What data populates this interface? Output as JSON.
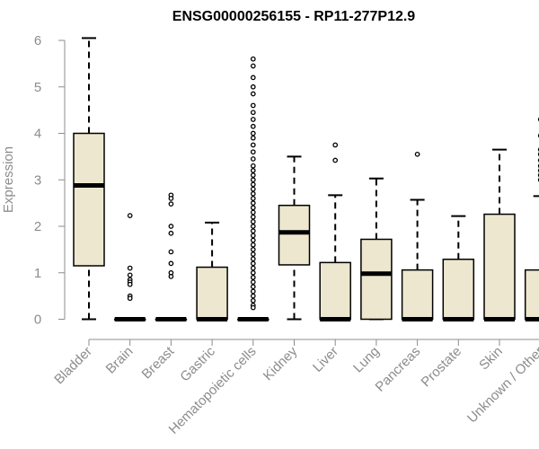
{
  "chart_data": {
    "type": "boxplot",
    "title": "ENSG00000256155 - RP11-277P12.9",
    "xlabel": "",
    "ylabel": "Expression",
    "ylim": [
      0,
      6.2
    ],
    "yticks": [
      0,
      1,
      2,
      3,
      4,
      5,
      6
    ],
    "grid": false,
    "colors": {
      "box_fill": "#ede7cf",
      "stroke": "#000000",
      "axis_text": "#8c8c8c"
    },
    "categories": [
      "Bladder",
      "Brain",
      "Breast",
      "Gastric",
      "Hematopoietic cells",
      "Kidney",
      "Liver",
      "Lung",
      "Pancreas",
      "Prostate",
      "Skin",
      "Unknown / Other"
    ],
    "boxes": [
      {
        "category": "Bladder",
        "whisker_low": 0,
        "q1": 1.15,
        "median": 2.88,
        "q3": 4.0,
        "whisker_high": 6.05,
        "outliers": []
      },
      {
        "category": "Brain",
        "whisker_low": 0,
        "q1": 0,
        "median": 0,
        "q3": 0,
        "whisker_high": 0,
        "outliers": [
          2.23,
          1.1,
          0.95,
          0.85,
          0.8,
          0.75,
          0.5,
          0.45
        ]
      },
      {
        "category": "Breast",
        "whisker_low": 0,
        "q1": 0,
        "median": 0,
        "q3": 0,
        "whisker_high": 0,
        "outliers": [
          2.67,
          2.6,
          2.48,
          2.0,
          1.85,
          1.45,
          1.2,
          1.0,
          0.92
        ]
      },
      {
        "category": "Gastric",
        "whisker_low": 0,
        "q1": 0,
        "median": 0,
        "q3": 1.12,
        "whisker_high": 2.08,
        "outliers": []
      },
      {
        "category": "Hematopoietic cells",
        "whisker_low": 0,
        "q1": 0,
        "median": 0,
        "q3": 0,
        "whisker_high": 0,
        "outlier_range": [
          0.25,
          5.6
        ],
        "outliers": [
          5.6,
          5.45,
          5.2,
          5.0,
          4.85,
          4.6,
          4.45,
          4.3,
          4.15,
          4.0,
          3.9,
          3.75,
          3.6,
          3.45,
          3.3,
          3.2,
          3.1,
          3.0,
          2.9,
          2.8,
          2.7,
          2.6,
          2.5,
          2.4,
          2.3,
          2.2,
          2.1,
          2.0,
          1.9,
          1.8,
          1.7,
          1.6,
          1.5,
          1.4,
          1.3,
          1.2,
          1.1,
          1.0,
          0.9,
          0.8,
          0.7,
          0.6,
          0.5,
          0.4,
          0.3,
          0.25
        ]
      },
      {
        "category": "Kidney",
        "whisker_low": 0,
        "q1": 1.17,
        "median": 1.87,
        "q3": 2.45,
        "whisker_high": 3.5,
        "outliers": []
      },
      {
        "category": "Liver",
        "whisker_low": 0,
        "q1": 0,
        "median": 0,
        "q3": 1.22,
        "whisker_high": 2.67,
        "outliers": [
          3.75,
          3.42
        ]
      },
      {
        "category": "Lung",
        "whisker_low": 0,
        "q1": 0,
        "median": 0.98,
        "q3": 1.72,
        "whisker_high": 3.03,
        "outliers": []
      },
      {
        "category": "Pancreas",
        "whisker_low": 0,
        "q1": 0,
        "median": 0,
        "q3": 1.06,
        "whisker_high": 2.57,
        "outliers": [
          3.55
        ]
      },
      {
        "category": "Prostate",
        "whisker_low": 0,
        "q1": 0,
        "median": 0,
        "q3": 1.29,
        "whisker_high": 2.22,
        "outliers": []
      },
      {
        "category": "Skin",
        "whisker_low": 0,
        "q1": 0,
        "median": 0,
        "q3": 2.26,
        "whisker_high": 3.65,
        "outliers": []
      },
      {
        "category": "Unknown / Other",
        "whisker_low": 0,
        "q1": 0,
        "median": 0,
        "q3": 1.06,
        "whisker_high": 2.65,
        "outliers": [
          4.3,
          3.95,
          3.65,
          3.55,
          3.42,
          3.3,
          3.2,
          3.1,
          3.0
        ]
      }
    ]
  }
}
